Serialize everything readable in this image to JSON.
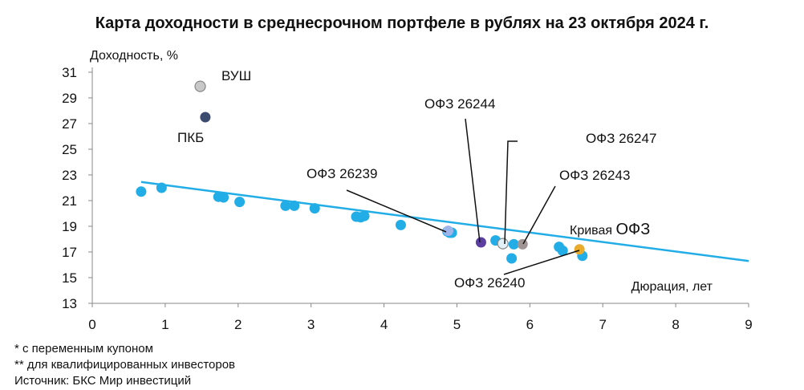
{
  "title": "Карта доходности в среднесрочном портфеле в рублях на 23 октября 2024 г.",
  "footnotes": [
    "* с переменным купоном",
    "** для квалифицированных инвесторов",
    "Источник: БКС Мир инвестиций"
  ],
  "chart_data": {
    "type": "scatter",
    "ylabel": "Доходность, %",
    "xlabel": "Дюрация, лет",
    "xlim": [
      0,
      9
    ],
    "ylim": [
      13,
      31
    ],
    "x_ticks": [
      0,
      1,
      2,
      3,
      4,
      5,
      6,
      7,
      8,
      9
    ],
    "y_ticks": [
      13,
      15,
      17,
      19,
      21,
      23,
      25,
      27,
      29,
      31
    ],
    "grid": false,
    "colors": {
      "ofz": "#22ADE6",
      "curve": "#22ADE6",
      "vush": "#C8C8C8",
      "pkb": "#3D4B6E",
      "ofz_26244": "#5B3FA0",
      "ofz_26247": "#E2F1F8",
      "ofz_26243": "#A09494",
      "ofz_26240": "#E9AB2C",
      "ofz_26239": "#9FB4E8"
    },
    "curve": {
      "name": "Кривая ОФЗ",
      "x": [
        0.67,
        9.0
      ],
      "y": [
        22.45,
        16.3
      ]
    },
    "series": [
      {
        "key": "ofz",
        "x": [
          0.67,
          0.95,
          1.73,
          1.8,
          2.02,
          2.65,
          2.77,
          3.05,
          3.62,
          3.68,
          3.73,
          4.23,
          4.87,
          4.9,
          4.93,
          5.53,
          5.78,
          5.75,
          6.4,
          6.45,
          6.72
        ],
        "y": [
          21.7,
          22.0,
          21.3,
          21.25,
          20.9,
          20.6,
          20.6,
          20.4,
          19.75,
          19.7,
          19.8,
          19.1,
          18.6,
          18.5,
          18.5,
          17.9,
          17.6,
          16.5,
          17.4,
          17.1,
          16.7
        ]
      }
    ],
    "highlights": [
      {
        "key": "vush",
        "label": "ВУШ",
        "x": 1.48,
        "y": 29.9
      },
      {
        "key": "pkb",
        "label": "ПКБ",
        "x": 1.55,
        "y": 27.5
      },
      {
        "key": "ofz_26239",
        "label": "ОФЗ 26239",
        "x": 4.88,
        "y": 18.65
      },
      {
        "key": "ofz_26244",
        "label": "ОФЗ 26244",
        "x": 5.33,
        "y": 17.75
      },
      {
        "key": "ofz_26247",
        "label": "ОФЗ 26247",
        "x": 5.63,
        "y": 17.65
      },
      {
        "key": "ofz_26243",
        "label": "ОФЗ 26243",
        "x": 5.9,
        "y": 17.6
      },
      {
        "key": "ofz_26240",
        "label": "ОФЗ 26240",
        "x": 6.68,
        "y": 17.2
      }
    ]
  }
}
